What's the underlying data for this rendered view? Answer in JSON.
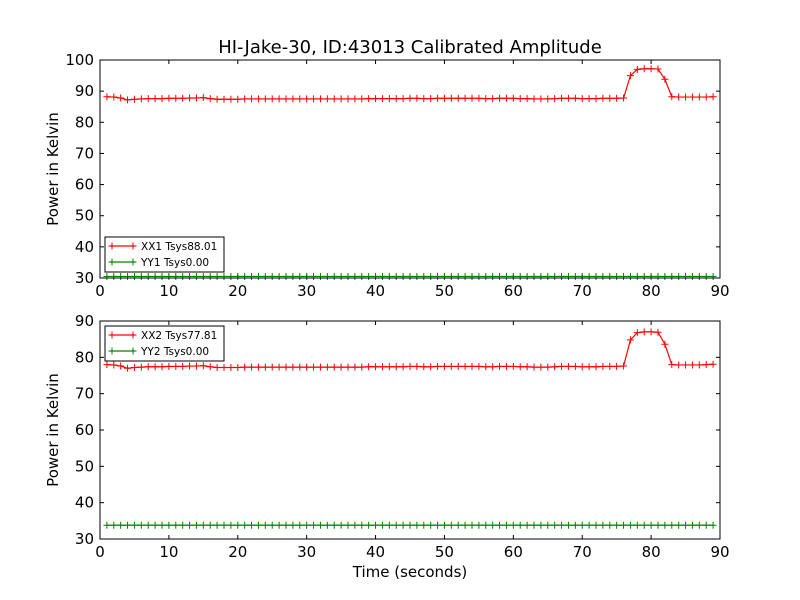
{
  "figure": {
    "title": "HI-Jake-30, ID:43013 Calibrated Amplitude",
    "xlabel": "Time (seconds)"
  },
  "chart_data": [
    {
      "type": "line",
      "title": "HI-Jake-30, ID:43013 Calibrated Amplitude",
      "xlabel": "",
      "ylabel": "Power in Kelvin",
      "xlim": [
        0,
        90
      ],
      "ylim": [
        30,
        100
      ],
      "xticks": [
        0,
        10,
        20,
        30,
        40,
        50,
        60,
        70,
        80,
        90
      ],
      "yticks": [
        30,
        40,
        50,
        60,
        70,
        80,
        90,
        100
      ],
      "grid": false,
      "legend_position": "lower-left",
      "series": [
        {
          "name": "XX1 Tsys88.01",
          "color": "#ff0000",
          "marker": "plus",
          "x": [
            1,
            2,
            3,
            4,
            5,
            6,
            7,
            8,
            9,
            10,
            11,
            12,
            13,
            14,
            15,
            16,
            17,
            18,
            19,
            20,
            21,
            22,
            23,
            24,
            25,
            26,
            27,
            28,
            29,
            30,
            31,
            32,
            33,
            34,
            35,
            36,
            37,
            38,
            39,
            40,
            41,
            42,
            43,
            44,
            45,
            46,
            47,
            48,
            49,
            50,
            51,
            52,
            53,
            54,
            55,
            56,
            57,
            58,
            59,
            60,
            61,
            62,
            63,
            64,
            65,
            66,
            67,
            68,
            69,
            70,
            71,
            72,
            73,
            74,
            75,
            76,
            77,
            78,
            79,
            80,
            81,
            82,
            83,
            84,
            85,
            86,
            87,
            88,
            89
          ],
          "y": [
            88.2,
            88.1,
            87.8,
            87.2,
            87.4,
            87.5,
            87.6,
            87.6,
            87.6,
            87.7,
            87.7,
            87.7,
            87.8,
            87.8,
            87.9,
            87.6,
            87.4,
            87.4,
            87.4,
            87.4,
            87.5,
            87.5,
            87.5,
            87.5,
            87.5,
            87.5,
            87.5,
            87.5,
            87.5,
            87.5,
            87.5,
            87.5,
            87.5,
            87.5,
            87.5,
            87.5,
            87.5,
            87.5,
            87.6,
            87.6,
            87.6,
            87.6,
            87.6,
            87.6,
            87.7,
            87.7,
            87.6,
            87.6,
            87.7,
            87.7,
            87.7,
            87.7,
            87.7,
            87.7,
            87.7,
            87.6,
            87.6,
            87.7,
            87.7,
            87.7,
            87.6,
            87.6,
            87.5,
            87.5,
            87.5,
            87.6,
            87.7,
            87.7,
            87.7,
            87.6,
            87.6,
            87.6,
            87.7,
            87.7,
            87.7,
            87.8,
            95.0,
            97.0,
            97.2,
            97.2,
            97.1,
            93.8,
            88.2,
            88.1,
            88.1,
            88.1,
            88.1,
            88.1,
            88.2
          ]
        },
        {
          "name": "YY1 Tsys0.00",
          "color": "#008000",
          "marker": "plus",
          "x": [
            1,
            2,
            3,
            4,
            5,
            6,
            7,
            8,
            9,
            10,
            11,
            12,
            13,
            14,
            15,
            16,
            17,
            18,
            19,
            20,
            21,
            22,
            23,
            24,
            25,
            26,
            27,
            28,
            29,
            30,
            31,
            32,
            33,
            34,
            35,
            36,
            37,
            38,
            39,
            40,
            41,
            42,
            43,
            44,
            45,
            46,
            47,
            48,
            49,
            50,
            51,
            52,
            53,
            54,
            55,
            56,
            57,
            58,
            59,
            60,
            61,
            62,
            63,
            64,
            65,
            66,
            67,
            68,
            69,
            70,
            71,
            72,
            73,
            74,
            75,
            76,
            77,
            78,
            79,
            80,
            81,
            82,
            83,
            84,
            85,
            86,
            87,
            88,
            89
          ],
          "y": [
            30.5,
            30.5,
            30.5,
            30.5,
            30.5,
            30.5,
            30.5,
            30.5,
            30.5,
            30.5,
            30.5,
            30.5,
            30.5,
            30.5,
            30.5,
            30.5,
            30.5,
            30.5,
            30.5,
            30.5,
            30.5,
            30.5,
            30.5,
            30.5,
            30.5,
            30.5,
            30.5,
            30.5,
            30.5,
            30.5,
            30.5,
            30.5,
            30.5,
            30.5,
            30.5,
            30.5,
            30.5,
            30.5,
            30.5,
            30.5,
            30.5,
            30.5,
            30.5,
            30.5,
            30.5,
            30.5,
            30.5,
            30.5,
            30.5,
            30.5,
            30.5,
            30.5,
            30.5,
            30.5,
            30.5,
            30.5,
            30.5,
            30.5,
            30.5,
            30.5,
            30.5,
            30.5,
            30.5,
            30.5,
            30.5,
            30.5,
            30.5,
            30.5,
            30.5,
            30.5,
            30.5,
            30.5,
            30.5,
            30.5,
            30.5,
            30.5,
            30.5,
            30.5,
            30.5,
            30.5,
            30.5,
            30.5,
            30.5,
            30.5,
            30.5,
            30.5,
            30.5,
            30.5,
            30.5
          ]
        }
      ]
    },
    {
      "type": "line",
      "title": "",
      "xlabel": "Time (seconds)",
      "ylabel": "Power in Kelvin",
      "xlim": [
        0,
        90
      ],
      "ylim": [
        30,
        90
      ],
      "xticks": [
        0,
        10,
        20,
        30,
        40,
        50,
        60,
        70,
        80,
        90
      ],
      "yticks": [
        30,
        40,
        50,
        60,
        70,
        80,
        90
      ],
      "grid": false,
      "legend_position": "upper-left",
      "series": [
        {
          "name": "XX2 Tsys77.81",
          "color": "#ff0000",
          "marker": "plus",
          "x": [
            1,
            2,
            3,
            4,
            5,
            6,
            7,
            8,
            9,
            10,
            11,
            12,
            13,
            14,
            15,
            16,
            17,
            18,
            19,
            20,
            21,
            22,
            23,
            24,
            25,
            26,
            27,
            28,
            29,
            30,
            31,
            32,
            33,
            34,
            35,
            36,
            37,
            38,
            39,
            40,
            41,
            42,
            43,
            44,
            45,
            46,
            47,
            48,
            49,
            50,
            51,
            52,
            53,
            54,
            55,
            56,
            57,
            58,
            59,
            60,
            61,
            62,
            63,
            64,
            65,
            66,
            67,
            68,
            69,
            70,
            71,
            72,
            73,
            74,
            75,
            76,
            77,
            78,
            79,
            80,
            81,
            82,
            83,
            84,
            85,
            86,
            87,
            88,
            89
          ],
          "y": [
            78.0,
            77.9,
            77.6,
            77.0,
            77.2,
            77.3,
            77.4,
            77.4,
            77.4,
            77.5,
            77.5,
            77.5,
            77.6,
            77.6,
            77.7,
            77.4,
            77.2,
            77.2,
            77.2,
            77.2,
            77.3,
            77.3,
            77.3,
            77.3,
            77.3,
            77.3,
            77.3,
            77.3,
            77.3,
            77.3,
            77.3,
            77.3,
            77.3,
            77.3,
            77.3,
            77.3,
            77.3,
            77.3,
            77.4,
            77.4,
            77.4,
            77.4,
            77.4,
            77.4,
            77.5,
            77.5,
            77.4,
            77.4,
            77.5,
            77.5,
            77.5,
            77.5,
            77.5,
            77.5,
            77.5,
            77.4,
            77.4,
            77.5,
            77.5,
            77.5,
            77.4,
            77.4,
            77.3,
            77.3,
            77.3,
            77.4,
            77.5,
            77.5,
            77.5,
            77.4,
            77.4,
            77.4,
            77.5,
            77.5,
            77.5,
            77.6,
            84.8,
            86.8,
            87.0,
            87.0,
            86.9,
            83.6,
            78.0,
            77.9,
            77.9,
            77.9,
            77.9,
            78.0,
            78.1
          ]
        },
        {
          "name": "YY2 Tsys0.00",
          "color": "#008000",
          "marker": "plus",
          "x": [
            1,
            2,
            3,
            4,
            5,
            6,
            7,
            8,
            9,
            10,
            11,
            12,
            13,
            14,
            15,
            16,
            17,
            18,
            19,
            20,
            21,
            22,
            23,
            24,
            25,
            26,
            27,
            28,
            29,
            30,
            31,
            32,
            33,
            34,
            35,
            36,
            37,
            38,
            39,
            40,
            41,
            42,
            43,
            44,
            45,
            46,
            47,
            48,
            49,
            50,
            51,
            52,
            53,
            54,
            55,
            56,
            57,
            58,
            59,
            60,
            61,
            62,
            63,
            64,
            65,
            66,
            67,
            68,
            69,
            70,
            71,
            72,
            73,
            74,
            75,
            76,
            77,
            78,
            79,
            80,
            81,
            82,
            83,
            84,
            85,
            86,
            87,
            88,
            89
          ],
          "y": [
            33.8,
            33.8,
            33.8,
            33.8,
            33.8,
            33.8,
            33.8,
            33.8,
            33.8,
            33.8,
            33.8,
            33.8,
            33.8,
            33.8,
            33.8,
            33.8,
            33.8,
            33.8,
            33.8,
            33.8,
            33.8,
            33.8,
            33.8,
            33.8,
            33.8,
            33.8,
            33.8,
            33.8,
            33.8,
            33.8,
            33.8,
            33.8,
            33.8,
            33.8,
            33.8,
            33.8,
            33.8,
            33.8,
            33.8,
            33.8,
            33.8,
            33.8,
            33.8,
            33.8,
            33.8,
            33.8,
            33.8,
            33.8,
            33.8,
            33.8,
            33.8,
            33.8,
            33.8,
            33.8,
            33.8,
            33.8,
            33.8,
            33.8,
            33.8,
            33.8,
            33.8,
            33.8,
            33.8,
            33.8,
            33.8,
            33.8,
            33.8,
            33.8,
            33.8,
            33.8,
            33.8,
            33.8,
            33.8,
            33.8,
            33.8,
            33.8,
            33.8,
            33.8,
            33.8,
            33.8,
            33.8,
            33.8,
            33.8,
            33.8,
            33.8,
            33.8,
            33.8,
            33.8,
            33.8
          ]
        }
      ]
    }
  ]
}
